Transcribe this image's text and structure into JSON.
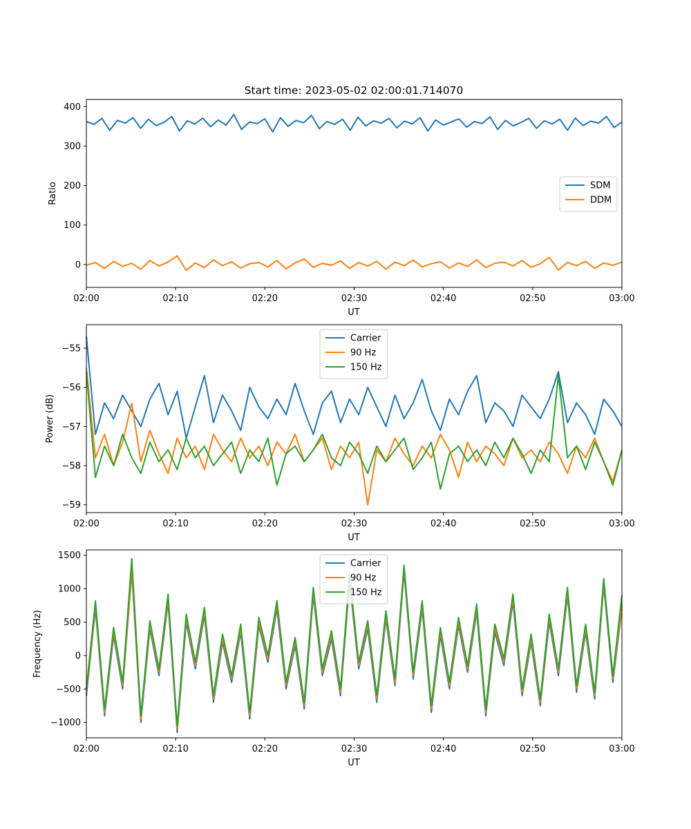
{
  "chart_data": [
    {
      "type": "line",
      "title": "Start time: 2023-05-02 02:00:01.714070",
      "xlabel": "UT",
      "ylabel": "Ratio",
      "xlim": [
        "02:00",
        "03:00"
      ],
      "ylim": [
        -58,
        418
      ],
      "x_ticks": [
        "02:00",
        "02:10",
        "02:20",
        "02:30",
        "02:40",
        "02:50",
        "03:00"
      ],
      "y_ticks": [
        0,
        100,
        200,
        300,
        400
      ],
      "legend_placement": "center-right",
      "grid": false,
      "series": [
        {
          "name": "SDM",
          "color": "#1f77b4",
          "values": [
            362,
            355,
            370,
            340,
            365,
            358,
            372,
            345,
            368,
            352,
            360,
            375,
            338,
            364,
            356,
            371,
            349,
            366,
            353,
            380,
            342,
            361,
            357,
            369,
            336,
            372,
            350,
            365,
            359,
            378,
            344,
            362,
            355,
            368,
            340,
            373,
            351,
            364,
            358,
            370,
            346,
            363,
            356,
            372,
            338,
            366,
            353,
            361,
            369,
            348,
            362,
            357,
            374,
            342,
            365,
            351,
            360,
            370,
            345,
            364,
            356,
            368,
            340,
            371,
            352,
            363,
            358,
            375,
            347,
            361
          ]
        },
        {
          "name": "DDM",
          "color": "#ff7f0e",
          "values": [
            -2,
            5,
            -10,
            8,
            -5,
            3,
            -12,
            10,
            -4,
            6,
            22,
            -15,
            4,
            -8,
            12,
            -3,
            7,
            -9,
            2,
            5,
            -6,
            10,
            -11,
            4,
            14,
            -7,
            3,
            -2,
            9,
            -10,
            5,
            -4,
            8,
            -12,
            6,
            -3,
            11,
            -6,
            2,
            7,
            -9,
            4,
            -5,
            12,
            -8,
            3,
            6,
            -4,
            10,
            -7,
            2,
            18,
            -14,
            5,
            -3,
            8,
            -10,
            4,
            -2,
            6
          ]
        }
      ]
    },
    {
      "type": "line",
      "title": "",
      "xlabel": "UT",
      "ylabel": "Power (dB)",
      "xlim": [
        "02:00",
        "03:00"
      ],
      "ylim": [
        -59.2,
        -54.4
      ],
      "x_ticks": [
        "02:00",
        "02:10",
        "02:20",
        "02:30",
        "02:40",
        "02:50",
        "03:00"
      ],
      "y_ticks": [
        -55,
        -56,
        -57,
        -58,
        -59
      ],
      "legend_placement": "upper-center",
      "grid": false,
      "series": [
        {
          "name": "Carrier",
          "color": "#1f77b4",
          "values": [
            -54.7,
            -57.2,
            -56.4,
            -56.8,
            -56.2,
            -56.6,
            -57.0,
            -56.3,
            -55.9,
            -56.7,
            -56.1,
            -57.3,
            -56.5,
            -55.7,
            -56.9,
            -56.2,
            -56.6,
            -57.1,
            -56.0,
            -56.5,
            -56.8,
            -56.3,
            -56.7,
            -55.9,
            -56.6,
            -57.2,
            -56.4,
            -56.1,
            -56.9,
            -56.3,
            -56.7,
            -56.0,
            -56.5,
            -57.0,
            -56.2,
            -56.8,
            -56.4,
            -55.8,
            -56.6,
            -57.1,
            -56.3,
            -56.7,
            -56.1,
            -55.7,
            -56.9,
            -56.4,
            -56.6,
            -57.0,
            -56.2,
            -56.5,
            -56.8,
            -56.3,
            -55.6,
            -56.9,
            -56.4,
            -56.7,
            -57.2,
            -56.3,
            -56.6,
            -57.0
          ]
        },
        {
          "name": "90 Hz",
          "color": "#ff7f0e",
          "values": [
            -55.5,
            -57.8,
            -57.2,
            -58.0,
            -57.4,
            -56.4,
            -57.9,
            -57.1,
            -57.7,
            -58.2,
            -57.3,
            -57.8,
            -57.5,
            -58.1,
            -57.2,
            -57.6,
            -57.9,
            -57.3,
            -57.8,
            -57.5,
            -58.0,
            -57.4,
            -57.7,
            -57.2,
            -57.9,
            -57.6,
            -57.3,
            -58.1,
            -57.5,
            -57.8,
            -57.4,
            -59.0,
            -57.6,
            -57.9,
            -57.3,
            -57.7,
            -58.0,
            -57.5,
            -57.8,
            -57.2,
            -57.6,
            -58.3,
            -57.4,
            -57.9,
            -57.5,
            -57.7,
            -58.0,
            -57.3,
            -57.8,
            -57.6,
            -57.9,
            -57.4,
            -57.7,
            -58.2,
            -57.5,
            -57.8,
            -57.3,
            -57.9,
            -58.4,
            -57.6
          ]
        },
        {
          "name": "150 Hz",
          "color": "#2ca02c",
          "values": [
            -55.6,
            -58.3,
            -57.5,
            -58.0,
            -57.2,
            -57.8,
            -58.2,
            -57.4,
            -57.9,
            -57.6,
            -58.1,
            -57.3,
            -57.8,
            -57.5,
            -58.0,
            -57.7,
            -57.4,
            -58.2,
            -57.6,
            -57.9,
            -57.3,
            -58.5,
            -57.7,
            -57.5,
            -57.9,
            -57.6,
            -57.2,
            -57.8,
            -58.0,
            -57.4,
            -57.7,
            -58.2,
            -57.5,
            -57.9,
            -57.6,
            -57.3,
            -58.1,
            -57.8,
            -57.4,
            -58.6,
            -57.7,
            -57.5,
            -57.9,
            -57.6,
            -58.0,
            -57.4,
            -57.8,
            -57.3,
            -57.7,
            -58.2,
            -57.6,
            -57.9,
            -55.7,
            -57.8,
            -57.5,
            -58.1,
            -57.4,
            -57.9,
            -58.5,
            -57.6
          ]
        }
      ]
    },
    {
      "type": "line",
      "title": "",
      "xlabel": "UT",
      "ylabel": "Frequency (Hz)",
      "xlim": [
        "02:00",
        "03:00"
      ],
      "ylim": [
        -1230,
        1580
      ],
      "x_ticks": [
        "02:00",
        "02:10",
        "02:20",
        "02:30",
        "02:40",
        "02:50",
        "03:00"
      ],
      "y_ticks": [
        1500,
        1000,
        500,
        0,
        -500,
        -1000
      ],
      "legend_placement": "upper-center",
      "grid": false,
      "series": [
        {
          "name": "Carrier",
          "color": "#1f77b4",
          "values": [
            -600,
            700,
            -900,
            300,
            -500,
            1250,
            -1000,
            400,
            -300,
            800,
            -1150,
            500,
            -200,
            600,
            -700,
            200,
            -400,
            350,
            -950,
            450,
            -100,
            700,
            -500,
            150,
            -800,
            900,
            -300,
            250,
            -600,
            1100,
            -200,
            400,
            -700,
            550,
            -450,
            1250,
            -350,
            700,
            -850,
            300,
            -500,
            450,
            -250,
            650,
            -900,
            350,
            -150,
            800,
            -600,
            200,
            -750,
            500,
            -300,
            900,
            -550,
            350,
            -650,
            1050,
            -400,
            700
          ]
        },
        {
          "name": "90 Hz",
          "color": "#ff7f0e",
          "values": [
            -550,
            760,
            -850,
            360,
            -450,
            1300,
            -950,
            460,
            -250,
            860,
            -1100,
            560,
            -150,
            660,
            -650,
            260,
            -350,
            410,
            -900,
            510,
            -50,
            760,
            -450,
            210,
            -750,
            960,
            -250,
            310,
            -550,
            1160,
            -150,
            460,
            -650,
            610,
            -400,
            1300,
            -300,
            760,
            -800,
            360,
            -450,
            510,
            -200,
            710,
            -850,
            410,
            -100,
            860,
            -550,
            260,
            -700,
            560,
            -250,
            960,
            -500,
            410,
            -600,
            1100,
            -350,
            760
          ]
        },
        {
          "name": "150 Hz",
          "color": "#2ca02c",
          "values": [
            -500,
            820,
            -800,
            420,
            -400,
            1450,
            -900,
            520,
            -200,
            920,
            -1050,
            620,
            -100,
            720,
            -600,
            320,
            -300,
            470,
            -850,
            570,
            0,
            820,
            -400,
            270,
            -700,
            1020,
            -200,
            370,
            -500,
            1220,
            -100,
            520,
            -600,
            670,
            -350,
            1350,
            -250,
            820,
            -750,
            420,
            -400,
            570,
            -150,
            770,
            -800,
            470,
            -50,
            920,
            -500,
            320,
            -650,
            620,
            -200,
            1020,
            -450,
            470,
            -550,
            1150,
            -300,
            900
          ]
        }
      ]
    }
  ]
}
